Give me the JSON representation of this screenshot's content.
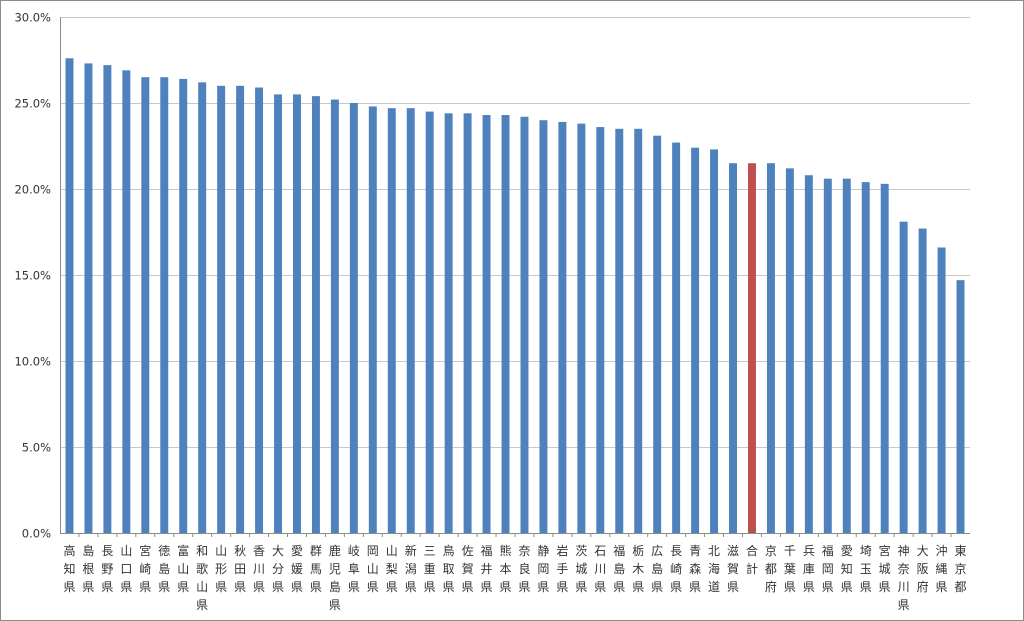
{
  "chart_data": {
    "type": "bar",
    "title": "",
    "xlabel": "",
    "ylabel": "",
    "ylim": [
      0,
      30
    ],
    "y_tick_values": [
      0,
      5,
      10,
      15,
      20,
      25,
      30
    ],
    "y_tick_labels": [
      "0.0%",
      "5.0%",
      "10.0%",
      "15.0%",
      "20.0%",
      "25.0%",
      "30.0%"
    ],
    "grid": true,
    "legend": "none",
    "colors": {
      "default": "#4f81bd",
      "highlight": "#c0504d"
    },
    "highlight_category": "合計",
    "categories": [
      "高知県",
      "島根県",
      "長野県",
      "山口県",
      "宮崎県",
      "徳島県",
      "富山県",
      "和歌山県",
      "山形県",
      "秋田県",
      "香川県",
      "大分県",
      "愛媛県",
      "群馬県",
      "鹿児島県",
      "岐阜県",
      "岡山県",
      "山梨県",
      "新潟県",
      "三重県",
      "鳥取県",
      "佐賀県",
      "福井県",
      "熊本県",
      "奈良県",
      "静岡県",
      "岩手県",
      "茨城県",
      "石川県",
      "福島県",
      "栃木県",
      "広島県",
      "長崎県",
      "青森県",
      "北海道",
      "滋賀県",
      "合計",
      "京都府",
      "千葉県",
      "兵庫県",
      "福岡県",
      "愛知県",
      "埼玉県",
      "宮城県",
      "神奈川県",
      "大阪府",
      "沖縄県",
      "東京都"
    ],
    "values": [
      27.6,
      27.3,
      27.2,
      26.9,
      26.5,
      26.5,
      26.4,
      26.2,
      26.0,
      26.0,
      25.9,
      25.5,
      25.5,
      25.4,
      25.2,
      25.0,
      24.8,
      24.7,
      24.7,
      24.5,
      24.4,
      24.4,
      24.3,
      24.3,
      24.2,
      24.0,
      23.9,
      23.8,
      23.6,
      23.5,
      23.5,
      23.1,
      22.7,
      22.4,
      22.3,
      21.5,
      21.5,
      21.5,
      21.2,
      20.8,
      20.6,
      20.6,
      20.4,
      20.3,
      18.1,
      17.7,
      16.6,
      14.7
    ]
  }
}
